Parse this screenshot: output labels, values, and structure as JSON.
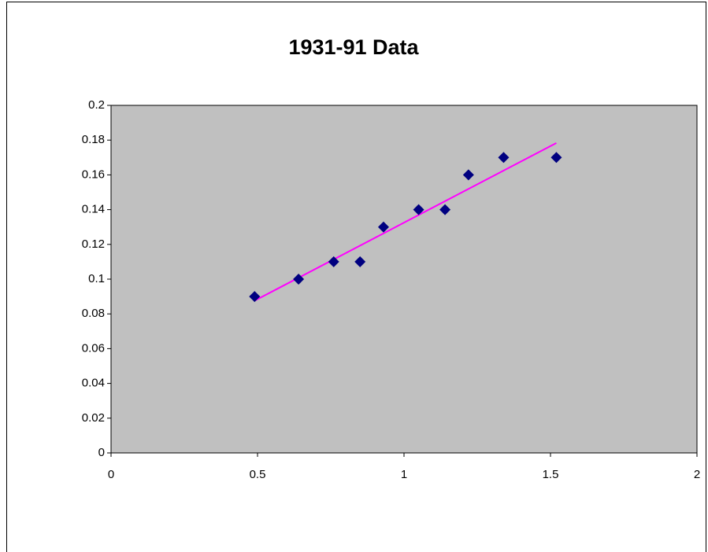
{
  "chart_data": {
    "type": "scatter",
    "title": "1931-91 Data",
    "x": [
      0.49,
      0.64,
      0.76,
      0.85,
      0.93,
      1.05,
      1.14,
      1.22,
      1.34,
      1.52
    ],
    "values": [
      0.09,
      0.1,
      0.11,
      0.11,
      0.13,
      0.14,
      0.14,
      0.16,
      0.17,
      0.17
    ],
    "color": "#000080",
    "trendline": "linear",
    "trendline_color": "#ff00ff",
    "plot_background": "#c0c0c0",
    "xlim": [
      0,
      2
    ],
    "xticks": [
      0,
      0.5,
      1,
      1.5,
      2
    ],
    "ylim": [
      0,
      0.2
    ],
    "yticks": [
      0,
      0.02,
      0.04,
      0.06,
      0.08,
      0.1,
      0.12,
      0.14,
      0.16,
      0.18,
      0.2
    ],
    "grid": false
  }
}
